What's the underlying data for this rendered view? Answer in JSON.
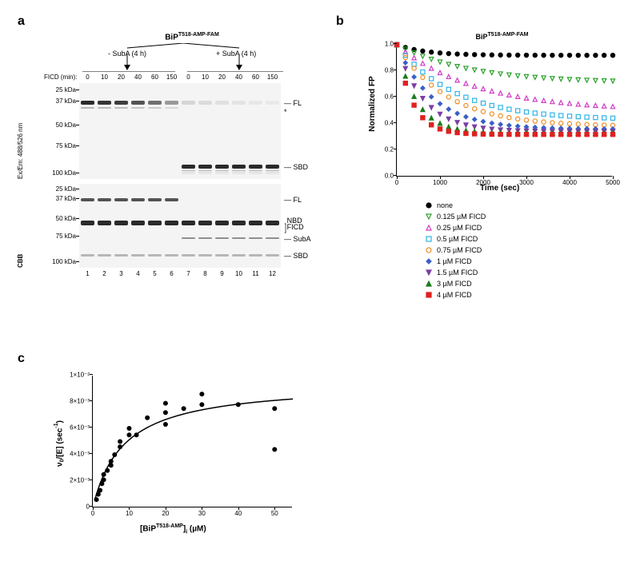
{
  "panels": {
    "a": "a",
    "b": "b",
    "c": "c"
  },
  "panel_a": {
    "title_prefix": "BiP",
    "title_super": "T518-AMP-FAM",
    "treatments": {
      "minus": "- SubA (4 h)",
      "plus": "+ SubA (4 h)"
    },
    "time_label": "FICD (min):",
    "times": [
      "0",
      "10",
      "20",
      "40",
      "60",
      "150",
      "0",
      "10",
      "20",
      "40",
      "60",
      "150"
    ],
    "lane_nums": [
      "1",
      "2",
      "3",
      "4",
      "5",
      "6",
      "7",
      "8",
      "9",
      "10",
      "11",
      "12"
    ],
    "mw_top": [
      "100 kDa",
      "75 kDa",
      "50 kDa",
      "37 kDa",
      "25 kDa"
    ],
    "mw_bot": [
      "100 kDa",
      "75 kDa",
      "50 kDa",
      "37 kDa",
      "25 kDa"
    ],
    "fl_label": "FL",
    "star_label": "*",
    "sbd_label": "SBD",
    "nbd_label": "NBD",
    "ficd_label": "FICD",
    "suba_label": "SubA",
    "ylabel_top": "Ex/Em: 488/526 nm",
    "ylabel_bot": "CBB",
    "gel_bg": "#f3f3f2",
    "band_color": "#2a2a2a",
    "top_gel": {
      "height": 120,
      "mw_pos": {
        "100": 8,
        "75": 22,
        "50": 52,
        "37": 78,
        "25": 112
      },
      "fl_band_y": 22,
      "fl_band_h": 5,
      "star_y": 31,
      "sbd_band_y": 102,
      "sbd_band_h": 5,
      "fl_intensity": [
        1.0,
        0.95,
        0.9,
        0.8,
        0.65,
        0.45,
        0.15,
        0.12,
        0.1,
        0.08,
        0.06,
        0.05
      ],
      "sbd_intensity": [
        0,
        0,
        0,
        0,
        0,
        0,
        1.0,
        1.0,
        1.0,
        1.0,
        1.0,
        1.0
      ]
    },
    "bot_gel": {
      "height": 105,
      "mw_pos": {
        "100": 6,
        "75": 18,
        "50": 43,
        "37": 65,
        "25": 97
      },
      "fl_y": 18,
      "fl_h": 4,
      "nbd_y": 46,
      "nbd_h": 6,
      "suba_y": 67,
      "suba_h": 2,
      "sbd_y": 88,
      "sbd_h": 3,
      "bands": [
        {
          "y": 18,
          "h": 4,
          "lanes": [
            0,
            1,
            2,
            3,
            4,
            5
          ],
          "int": 0.8
        },
        {
          "y": 46,
          "h": 6,
          "lanes": [
            0,
            1,
            2,
            3,
            4,
            5,
            6,
            7,
            8,
            9,
            10,
            11
          ],
          "int": 1.0
        },
        {
          "y": 67,
          "h": 2,
          "lanes": [
            6,
            7,
            8,
            9,
            10,
            11
          ],
          "int": 0.5
        },
        {
          "y": 88,
          "h": 3,
          "lanes": [
            0,
            1,
            2,
            3,
            4,
            5,
            6,
            7,
            8,
            9,
            10,
            11
          ],
          "int": 0.3
        }
      ]
    }
  },
  "panel_b": {
    "title_prefix": "BiP",
    "title_super": "T518-AMP-FAM",
    "ylabel": "Normalized FP",
    "xlabel": "Time (sec)",
    "xlim": [
      0,
      5000
    ],
    "ylim": [
      0.0,
      1.0
    ],
    "xticks": [
      0,
      1000,
      2000,
      3000,
      4000,
      5000
    ],
    "yticks": [
      0.0,
      0.2,
      0.4,
      0.6,
      0.8,
      1.0
    ],
    "tick_fontsize": 8,
    "label_fontsize": 10,
    "n_points": 26,
    "series": [
      {
        "name": "none",
        "color": "#000000",
        "marker": "circle-filled",
        "asym": 0.92,
        "k": 0.0015
      },
      {
        "name": "0.125 µM FICD",
        "color": "#2aa02a",
        "marker": "triangle-open-dn",
        "asym": 0.71,
        "k": 0.0006
      },
      {
        "name": "0.25 µM FICD",
        "color": "#d13cc7",
        "marker": "triangle-open-up",
        "asym": 0.5,
        "k": 0.00055
      },
      {
        "name": "0.5 µM FICD",
        "color": "#31b4e6",
        "marker": "square-open",
        "asym": 0.43,
        "k": 0.00075
      },
      {
        "name": "0.75 µM FICD",
        "color": "#f08b1e",
        "marker": "circle-open",
        "asym": 0.38,
        "k": 0.00085
      },
      {
        "name": "1 µM FICD",
        "color": "#3b5fc6",
        "marker": "diamond-filled",
        "asym": 0.36,
        "k": 0.0012
      },
      {
        "name": "1.5 µM FICD",
        "color": "#7a3fa3",
        "marker": "triangle-filled-dn",
        "asym": 0.34,
        "k": 0.0016
      },
      {
        "name": "3 µM FICD",
        "color": "#1c7a1c",
        "marker": "triangle-filled-up",
        "asym": 0.33,
        "k": 0.0022
      },
      {
        "name": "4 µM FICD",
        "color": "#e02020",
        "marker": "square-filled",
        "asym": 0.32,
        "k": 0.0028
      }
    ]
  },
  "panel_c": {
    "ylabel": "ν₀/[E] (sec⁻¹)",
    "xlabel": "[BiPᵀ⁵¹⁸⁻ᴬᴹᴾ]ᵢ (µM)",
    "xlabel_prefix": "[BiP",
    "xlabel_super": "T518-AMP",
    "xlabel_suffix": "]",
    "xlabel_sub": "i",
    "xlabel_unit": " (µM)",
    "ylabel_html": "ν<sub>0</sub>/[E] (sec<sup>-1</sup>)",
    "xlim": [
      0,
      55
    ],
    "ylim": [
      0,
      0.01
    ],
    "xticks": [
      0,
      10,
      20,
      30,
      40,
      50
    ],
    "yticks_raw": [
      0,
      0.002,
      0.004,
      0.006,
      0.008,
      0.01
    ],
    "yticks_label": [
      "0",
      "2×10⁻³",
      "4×10⁻³",
      "6×10⁻³",
      "8×10⁻³",
      "1×10⁻²"
    ],
    "marker_color": "#000000",
    "line_color": "#000000",
    "fit": {
      "vmax": 0.0095,
      "km": 8.5
    },
    "points": [
      [
        1,
        0.0006
      ],
      [
        1.5,
        0.001
      ],
      [
        2,
        0.0013
      ],
      [
        2.5,
        0.0018
      ],
      [
        3,
        0.0021
      ],
      [
        3,
        0.0025
      ],
      [
        4,
        0.0028
      ],
      [
        5,
        0.0035
      ],
      [
        5,
        0.0032
      ],
      [
        6,
        0.004
      ],
      [
        7.5,
        0.005
      ],
      [
        7.5,
        0.0046
      ],
      [
        10,
        0.0055
      ],
      [
        10,
        0.006
      ],
      [
        12,
        0.0055
      ],
      [
        15,
        0.0068
      ],
      [
        20,
        0.0072
      ],
      [
        20,
        0.0079
      ],
      [
        20,
        0.0063
      ],
      [
        25,
        0.0075
      ],
      [
        30,
        0.0086
      ],
      [
        30,
        0.0078
      ],
      [
        40,
        0.0078
      ],
      [
        50,
        0.0075
      ],
      [
        50,
        0.0044
      ]
    ]
  }
}
